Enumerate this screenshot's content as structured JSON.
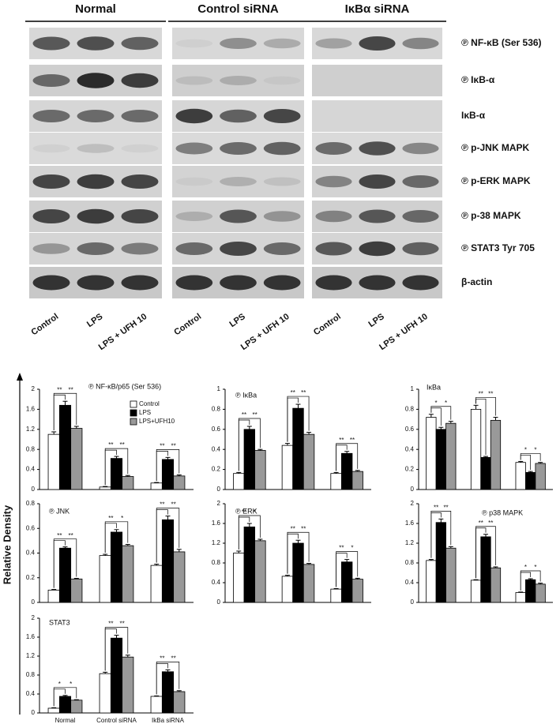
{
  "blot": {
    "groups": [
      "Normal",
      "Control siRNA",
      "IκBα siRNA"
    ],
    "rows": [
      "℗ NF-κB (Ser 536)",
      "℗ IκB-α",
      "IκB-α",
      "℗ p-JNK MAPK",
      "℗ p-ERK MAPK",
      "℗ p-38 MAPK",
      "℗ STAT3 Tyr 705",
      "β-actin"
    ],
    "lanes": [
      "Control",
      "LPS",
      "LPS + UFH 10"
    ]
  },
  "y_axis_label": "Relative Density",
  "legend": [
    {
      "name": "Control",
      "color": "#ffffff"
    },
    {
      "name": "LPS",
      "color": "#000000"
    },
    {
      "name": "LPS+UFH10",
      "color": "#999999"
    }
  ],
  "chart_data": [
    {
      "type": "bar",
      "title": "℗ NF-κB/p65 (Ser 536)",
      "ylim": [
        0,
        2
      ],
      "yticks": [
        0,
        0.4,
        0.8,
        1.2,
        1.6,
        2
      ],
      "series": [
        {
          "color": "#ffffff",
          "values": [
            1.1,
            0.05,
            0.13
          ],
          "errors": [
            0.05,
            0.01,
            0.01
          ]
        },
        {
          "color": "#000000",
          "values": [
            1.68,
            0.62,
            0.6
          ],
          "errors": [
            0.08,
            0.04,
            0.04
          ]
        },
        {
          "color": "#999999",
          "values": [
            1.22,
            0.26,
            0.27
          ],
          "errors": [
            0.04,
            0.02,
            0.02
          ]
        }
      ],
      "significance": [
        [
          "**",
          "**"
        ],
        [
          "**",
          "**"
        ],
        [
          "**",
          "**"
        ]
      ]
    },
    {
      "type": "bar",
      "title": "℗ IκBa",
      "ylim": [
        0,
        1
      ],
      "yticks": [
        0,
        0.2,
        0.4,
        0.6,
        0.8,
        1
      ],
      "series": [
        {
          "color": "#ffffff",
          "values": [
            0.16,
            0.44,
            0.16
          ],
          "errors": [
            0.01,
            0.02,
            0.01
          ]
        },
        {
          "color": "#000000",
          "values": [
            0.6,
            0.81,
            0.36
          ],
          "errors": [
            0.03,
            0.04,
            0.02
          ]
        },
        {
          "color": "#999999",
          "values": [
            0.39,
            0.55,
            0.18
          ],
          "errors": [
            0.01,
            0.02,
            0.01
          ]
        }
      ],
      "significance": [
        [
          "**",
          "**"
        ],
        [
          "**",
          "**"
        ],
        [
          "**",
          "**"
        ]
      ]
    },
    {
      "type": "bar",
      "title": "IκBa",
      "ylim": [
        0,
        1
      ],
      "yticks": [
        0,
        0.2,
        0.4,
        0.6,
        0.8,
        1
      ],
      "series": [
        {
          "color": "#ffffff",
          "values": [
            0.72,
            0.8,
            0.27
          ],
          "errors": [
            0.03,
            0.04,
            0.01
          ]
        },
        {
          "color": "#000000",
          "values": [
            0.6,
            0.32,
            0.17
          ],
          "errors": [
            0.02,
            0.01,
            0.01
          ]
        },
        {
          "color": "#999999",
          "values": [
            0.66,
            0.69,
            0.26
          ],
          "errors": [
            0.02,
            0.03,
            0.01
          ]
        }
      ],
      "significance": [
        [
          "*",
          "*"
        ],
        [
          "**",
          "**"
        ],
        [
          "*",
          "*"
        ]
      ]
    },
    {
      "type": "bar",
      "title": "℗ JNK",
      "ylim": [
        0,
        0.8
      ],
      "yticks": [
        0,
        0.2,
        0.4,
        0.6,
        0.8
      ],
      "series": [
        {
          "color": "#ffffff",
          "values": [
            0.1,
            0.38,
            0.3
          ],
          "errors": [
            0.005,
            0.01,
            0.01
          ]
        },
        {
          "color": "#000000",
          "values": [
            0.44,
            0.57,
            0.67
          ],
          "errors": [
            0.01,
            0.02,
            0.03
          ]
        },
        {
          "color": "#999999",
          "values": [
            0.19,
            0.46,
            0.41
          ],
          "errors": [
            0.005,
            0.01,
            0.02
          ]
        }
      ],
      "significance": [
        [
          "**",
          "**"
        ],
        [
          "**",
          "*"
        ],
        [
          "**",
          "**"
        ]
      ]
    },
    {
      "type": "bar",
      "title": "℗ ERK",
      "ylim": [
        0,
        2
      ],
      "yticks": [
        0,
        0.4,
        0.8,
        1.2,
        1.6,
        2
      ],
      "series": [
        {
          "color": "#ffffff",
          "values": [
            1.0,
            0.53,
            0.27
          ],
          "errors": [
            0.04,
            0.02,
            0.01
          ]
        },
        {
          "color": "#000000",
          "values": [
            1.53,
            1.2,
            0.82
          ],
          "errors": [
            0.07,
            0.06,
            0.05
          ]
        },
        {
          "color": "#999999",
          "values": [
            1.25,
            0.77,
            0.47
          ],
          "errors": [
            0.03,
            0.02,
            0.02
          ]
        }
      ],
      "significance": [
        [
          "**",
          "*"
        ],
        [
          "**",
          "**"
        ],
        [
          "**",
          "*"
        ]
      ]
    },
    {
      "type": "bar",
      "title": "℗ p38 MAPK",
      "ylim": [
        0,
        2
      ],
      "yticks": [
        0,
        0.4,
        0.8,
        1.2,
        1.6,
        2
      ],
      "series": [
        {
          "color": "#ffffff",
          "values": [
            0.85,
            0.45,
            0.2
          ],
          "errors": [
            0.02,
            0.01,
            0.01
          ]
        },
        {
          "color": "#000000",
          "values": [
            1.62,
            1.33,
            0.46
          ],
          "errors": [
            0.07,
            0.05,
            0.02
          ]
        },
        {
          "color": "#999999",
          "values": [
            1.1,
            0.7,
            0.37
          ],
          "errors": [
            0.03,
            0.02,
            0.02
          ]
        }
      ],
      "significance": [
        [
          "**",
          "**"
        ],
        [
          "**",
          "**"
        ],
        [
          "*",
          "*"
        ]
      ]
    },
    {
      "type": "bar",
      "title": "STAT3",
      "ylim": [
        0,
        2
      ],
      "yticks": [
        0,
        0.4,
        0.8,
        1.2,
        1.6,
        2
      ],
      "categories": [
        "Normal",
        "Control siRNA",
        "IkBa siRNA"
      ],
      "series": [
        {
          "color": "#ffffff",
          "values": [
            0.1,
            0.83,
            0.35
          ],
          "errors": [
            0.01,
            0.03,
            0.01
          ]
        },
        {
          "color": "#000000",
          "values": [
            0.35,
            1.58,
            0.87
          ],
          "errors": [
            0.02,
            0.06,
            0.04
          ]
        },
        {
          "color": "#999999",
          "values": [
            0.27,
            1.18,
            0.45
          ],
          "errors": [
            0.01,
            0.04,
            0.02
          ]
        }
      ],
      "significance": [
        [
          "*",
          "*"
        ],
        [
          "**",
          "**"
        ],
        [
          "**",
          "**"
        ]
      ]
    }
  ]
}
